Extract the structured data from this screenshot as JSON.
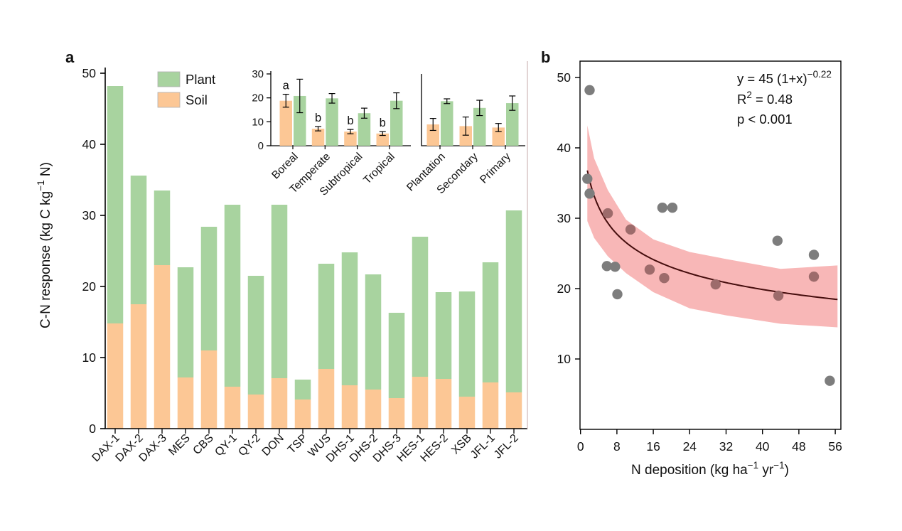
{
  "figure": {
    "background": "#ffffff"
  },
  "colors": {
    "plant_green": "#a8d39f",
    "soil_orange": "#fcc795",
    "band_pink": "#f8b7b7",
    "fit_curve": "#450d0d",
    "scatter_gray": "#7d7d7d",
    "scatter_in_band": "#9d6b6b",
    "axis_black": "#000000",
    "panel_a_right_spine": "#d6c2c2"
  },
  "panel_a": {
    "label": "a",
    "ylabel_parts": [
      {
        "t": "C-N response (kg C kg"
      },
      {
        "sup": "-1"
      },
      {
        "t": " N)"
      }
    ],
    "legend": {
      "plant": "Plant",
      "soil": "Soil"
    }
  },
  "panel_b": {
    "label": "b",
    "xlabel_parts": [
      {
        "t": "N deposition (kg ha"
      },
      {
        "sup": "-1"
      },
      {
        "t": " yr"
      },
      {
        "sup": "-1"
      },
      {
        "t": ")"
      }
    ],
    "annotation_lines": [
      [
        {
          "t": "y = 45 (1+x)"
        },
        {
          "sup": "-0.22"
        }
      ],
      [
        {
          "t": "R"
        },
        {
          "sup": "2"
        },
        {
          "t": " = 0.48"
        }
      ],
      [
        {
          "t": "p < 0.001"
        }
      ]
    ]
  },
  "chart_data": [
    {
      "id": "panel_a_main",
      "type": "bar",
      "stacked": true,
      "ylabel": "C-N response (kg C kg-1 N)",
      "ylim": [
        0,
        52
      ],
      "yticks": [
        0,
        10,
        20,
        30,
        40,
        50
      ],
      "legend_position": "top-left-inside",
      "grid": false,
      "categories": [
        "DAX-1",
        "DAX-2",
        "DAX-3",
        "MES",
        "CBS",
        "QY-1",
        "QY-2",
        "DON",
        "TSP",
        "WUS",
        "DHS-1",
        "DHS-2",
        "DHS-3",
        "HES-1",
        "HES-2",
        "XSB",
        "JFL-1",
        "JFL-2"
      ],
      "series": [
        {
          "name": "Soil",
          "values": [
            14.8,
            17.5,
            23.0,
            7.2,
            11.0,
            5.9,
            4.8,
            7.1,
            4.1,
            8.4,
            6.1,
            5.5,
            4.3,
            7.3,
            7.0,
            4.5,
            6.5,
            5.1
          ]
        },
        {
          "name": "Plant",
          "values": [
            33.4,
            18.1,
            10.5,
            15.5,
            17.4,
            25.6,
            16.7,
            24.4,
            2.8,
            14.8,
            18.7,
            16.2,
            12.0,
            19.7,
            12.2,
            14.8,
            16.9,
            25.6
          ]
        }
      ],
      "stack_totals": [
        48.2,
        35.6,
        33.5,
        22.7,
        28.4,
        31.5,
        21.5,
        31.5,
        6.9,
        23.2,
        24.8,
        21.7,
        16.3,
        27.0,
        19.2,
        19.3,
        23.4,
        30.7
      ]
    },
    {
      "id": "panel_a_inset",
      "type": "bar",
      "grouped": true,
      "ylim": [
        0,
        30
      ],
      "yticks": [
        0,
        10,
        20,
        30
      ],
      "split_after_index": 3,
      "groups": [
        {
          "label": "Boreal",
          "soil": 18.8,
          "soil_err": 2.7,
          "plant": 20.8,
          "plant_err": 7.0,
          "letter": "a"
        },
        {
          "label": "Temperate",
          "soil": 7.1,
          "soil_err": 0.9,
          "plant": 19.8,
          "plant_err": 2.0,
          "letter": "b"
        },
        {
          "label": "Subtropical",
          "soil": 5.9,
          "soil_err": 0.9,
          "plant": 13.6,
          "plant_err": 2.1,
          "letter": "b"
        },
        {
          "label": "Tropical",
          "soil": 5.1,
          "soil_err": 0.8,
          "plant": 18.8,
          "plant_err": 3.3,
          "letter": "b"
        },
        {
          "label": "Plantation",
          "soil": 8.9,
          "soil_err": 2.5,
          "plant": 18.6,
          "plant_err": 1.0,
          "letter": ""
        },
        {
          "label": "Secondary",
          "soil": 8.2,
          "soil_err": 3.8,
          "plant": 15.8,
          "plant_err": 3.2,
          "letter": ""
        },
        {
          "label": "Primary",
          "soil": 7.6,
          "soil_err": 1.7,
          "plant": 17.8,
          "plant_err": 3.0,
          "letter": ""
        }
      ]
    },
    {
      "id": "panel_b",
      "type": "scatter",
      "xlabel": "N deposition (kg ha-1 yr-1)",
      "xlim": [
        0,
        57.3
      ],
      "ylim": [
        0,
        52.3
      ],
      "xticks": [
        0,
        8,
        16,
        24,
        32,
        40,
        48,
        56
      ],
      "yticks": [
        10,
        20,
        30,
        40,
        50
      ],
      "grid": false,
      "points": [
        {
          "x": 2.0,
          "y": 48.2,
          "in_band": false
        },
        {
          "x": 1.5,
          "y": 35.6,
          "in_band": false
        },
        {
          "x": 2.0,
          "y": 33.5,
          "in_band": false
        },
        {
          "x": 6.0,
          "y": 30.7,
          "in_band": true
        },
        {
          "x": 11.0,
          "y": 28.4,
          "in_band": true
        },
        {
          "x": 18.0,
          "y": 31.5,
          "in_band": false
        },
        {
          "x": 20.2,
          "y": 31.5,
          "in_band": false
        },
        {
          "x": 5.8,
          "y": 23.2,
          "in_band": false
        },
        {
          "x": 7.6,
          "y": 23.1,
          "in_band": false
        },
        {
          "x": 8.1,
          "y": 19.2,
          "in_band": false
        },
        {
          "x": 15.2,
          "y": 22.7,
          "in_band": true
        },
        {
          "x": 18.4,
          "y": 21.5,
          "in_band": true
        },
        {
          "x": 29.7,
          "y": 20.6,
          "in_band": true
        },
        {
          "x": 43.3,
          "y": 26.8,
          "in_band": false
        },
        {
          "x": 51.3,
          "y": 24.8,
          "in_band": false
        },
        {
          "x": 51.3,
          "y": 21.7,
          "in_band": true
        },
        {
          "x": 43.5,
          "y": 19.0,
          "in_band": true
        },
        {
          "x": 54.8,
          "y": 6.9,
          "in_band": false
        }
      ],
      "fit": {
        "equation": "y = 45 (1+x)^-0.22",
        "a": 45,
        "exponent": -0.22,
        "x_start": 1.5,
        "x_end": 56.5,
        "r2": 0.48,
        "p": "p < 0.001"
      },
      "band": {
        "x": [
          1.5,
          3,
          6,
          10,
          16,
          24,
          32,
          44,
          56.5
        ],
        "upper": [
          43.2,
          38.5,
          34.0,
          29.8,
          27.0,
          25.2,
          24.2,
          22.8,
          23.3
        ],
        "lower": [
          29.6,
          27.2,
          24.6,
          22.2,
          19.5,
          17.2,
          16.2,
          15.0,
          14.5
        ]
      }
    }
  ]
}
